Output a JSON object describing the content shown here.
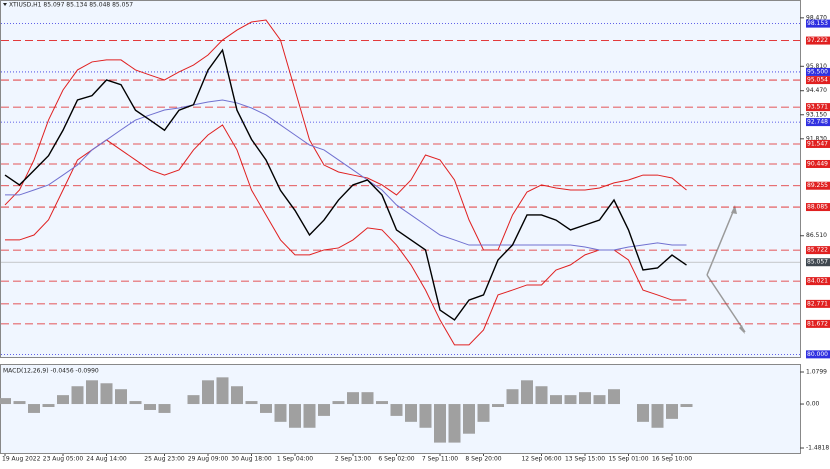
{
  "chart_data": [
    {
      "type": "line",
      "title": "XTIUSD,H1  85.097 85.134 85.048 85.057",
      "categories": [
        "19 Aug 2022",
        null,
        null,
        null,
        "23 Aug 05:00",
        null,
        null,
        "24 Aug 14:00",
        null,
        null,
        null,
        "25 Aug 23:00",
        null,
        null,
        "29 Aug 09:00",
        null,
        null,
        "30 Aug 18:00",
        null,
        null,
        "1 Sep 04:00",
        null,
        null,
        null,
        "2 Sep 13:00",
        null,
        null,
        "6 Sep 02:00",
        null,
        null,
        "7 Sep 11:00",
        null,
        null,
        "8 Sep 20:00",
        null,
        null,
        null,
        "12 Sep 06:00",
        null,
        null,
        "13 Sep 15:00",
        null,
        null,
        "15 Sep 01:00",
        null,
        null,
        "16 Sep 10:00",
        null
      ],
      "series": [
        {
          "color": "#e02020",
          "values": [
            88.2,
            89.02,
            90.67,
            92.86,
            94.51,
            95.61,
            96.05,
            96.16,
            96.16,
            95.61,
            95.33,
            95.06,
            95.5,
            95.88,
            96.43,
            97.25,
            97.8,
            98.24,
            98.35,
            97.25,
            94.51,
            91.77,
            90.39,
            90.01,
            89.84,
            89.68,
            89.3,
            88.75,
            89.57,
            90.94,
            90.67,
            89.57,
            87.38,
            85.73,
            85.73,
            87.65,
            88.91,
            89.3,
            89.13,
            89.02,
            89.02,
            89.13,
            89.41,
            89.57,
            89.84,
            89.84,
            89.68,
            89.02
          ]
        },
        {
          "color": "#e02020",
          "values": [
            86.28,
            86.28,
            86.55,
            87.38,
            89.02,
            90.67,
            91.22,
            91.77,
            91.22,
            90.67,
            90.12,
            89.84,
            90.12,
            91.22,
            92.04,
            92.59,
            91.22,
            89.02,
            87.65,
            86.28,
            85.46,
            85.46,
            85.73,
            85.84,
            86.28,
            86.94,
            86.83,
            86.0,
            84.91,
            83.53,
            81.89,
            80.52,
            80.52,
            81.34,
            83.26,
            83.53,
            83.81,
            83.81,
            84.63,
            84.91,
            85.46,
            85.73,
            85.73,
            85.18,
            83.53,
            83.26,
            82.98,
            82.98
          ]
        },
        {
          "color": "#7070d0",
          "values": [
            88.75,
            88.75,
            89.02,
            89.3,
            89.84,
            90.39,
            91.22,
            91.77,
            92.32,
            92.86,
            93.14,
            93.41,
            93.52,
            93.69,
            93.85,
            93.96,
            93.8,
            93.52,
            93.14,
            92.59,
            92.04,
            91.49,
            91.22,
            90.67,
            90.12,
            89.57,
            89.02,
            88.2,
            87.65,
            87.1,
            86.55,
            86.28,
            86.0,
            86.0,
            86.0,
            86.0,
            86.0,
            86.0,
            86.0,
            86.0,
            85.89,
            85.73,
            85.73,
            85.89,
            86.0,
            86.12,
            86.0,
            86.0
          ]
        },
        {
          "color": "#000000",
          "values": [
            89.84,
            89.3,
            90.1,
            90.9,
            92.3,
            93.96,
            94.2,
            95.06,
            94.8,
            93.4,
            92.86,
            92.3,
            93.4,
            93.7,
            95.6,
            96.7,
            93.4,
            91.8,
            90.67,
            89.0,
            87.9,
            86.55,
            87.37,
            88.47,
            89.3,
            89.57,
            88.75,
            86.83,
            86.28,
            85.73,
            82.43,
            81.89,
            82.98,
            83.26,
            85.18,
            86.0,
            87.65,
            87.65,
            87.37,
            86.83,
            87.1,
            87.37,
            88.47,
            86.83,
            84.63,
            84.74,
            85.45,
            84.9
          ]
        }
      ],
      "ylim": [
        79.8,
        98.9
      ],
      "yticks": [
        {
          "value": 98.47,
          "label": "98.470"
        },
        {
          "value": 95.81,
          "label": "95.810"
        },
        {
          "value": 94.47,
          "label": "94.470"
        },
        {
          "value": 93.15,
          "label": "93.150"
        },
        {
          "value": 91.83,
          "label": "91.830"
        },
        {
          "value": 86.51,
          "label": "86.510"
        }
      ],
      "red_levels": [
        97.222,
        95.054,
        93.571,
        91.547,
        90.449,
        89.255,
        88.085,
        85.722,
        84.021,
        82.771,
        81.672
      ],
      "red_level_color": "#e02020",
      "blue_levels": [
        98.153,
        {
          "value": 95.5,
          "label": "95.500"
        },
        92.748,
        {
          "value": 80.0,
          "label": "80.000"
        }
      ],
      "blue_level_color": "#3030e0",
      "last_price": 85.057,
      "last_price_color": "#404850"
    },
    {
      "type": "bar",
      "title": "MACD(12,26,9) -0.0456 -0.0990",
      "color": "#a0a0a0",
      "values": [
        0.2,
        0.1,
        -0.3,
        -0.1,
        0.3,
        0.6,
        0.8,
        0.7,
        0.5,
        0.1,
        -0.2,
        -0.3,
        0.0,
        0.3,
        0.8,
        0.9,
        0.6,
        0.1,
        -0.3,
        -0.6,
        -0.8,
        -0.8,
        -0.4,
        0.1,
        0.4,
        0.4,
        0.1,
        -0.4,
        -0.6,
        -0.8,
        -1.3,
        -1.3,
        -1.0,
        -0.6,
        -0.1,
        0.5,
        0.8,
        0.6,
        0.3,
        0.3,
        0.4,
        0.3,
        0.5,
        0.0,
        -0.6,
        -0.8,
        -0.5,
        -0.1
      ],
      "ylim": [
        -1.4818,
        1.0799
      ],
      "yticks": [
        1.0799,
        {
          "value": 0,
          "label": "0.00"
        },
        -1.4818
      ]
    }
  ]
}
